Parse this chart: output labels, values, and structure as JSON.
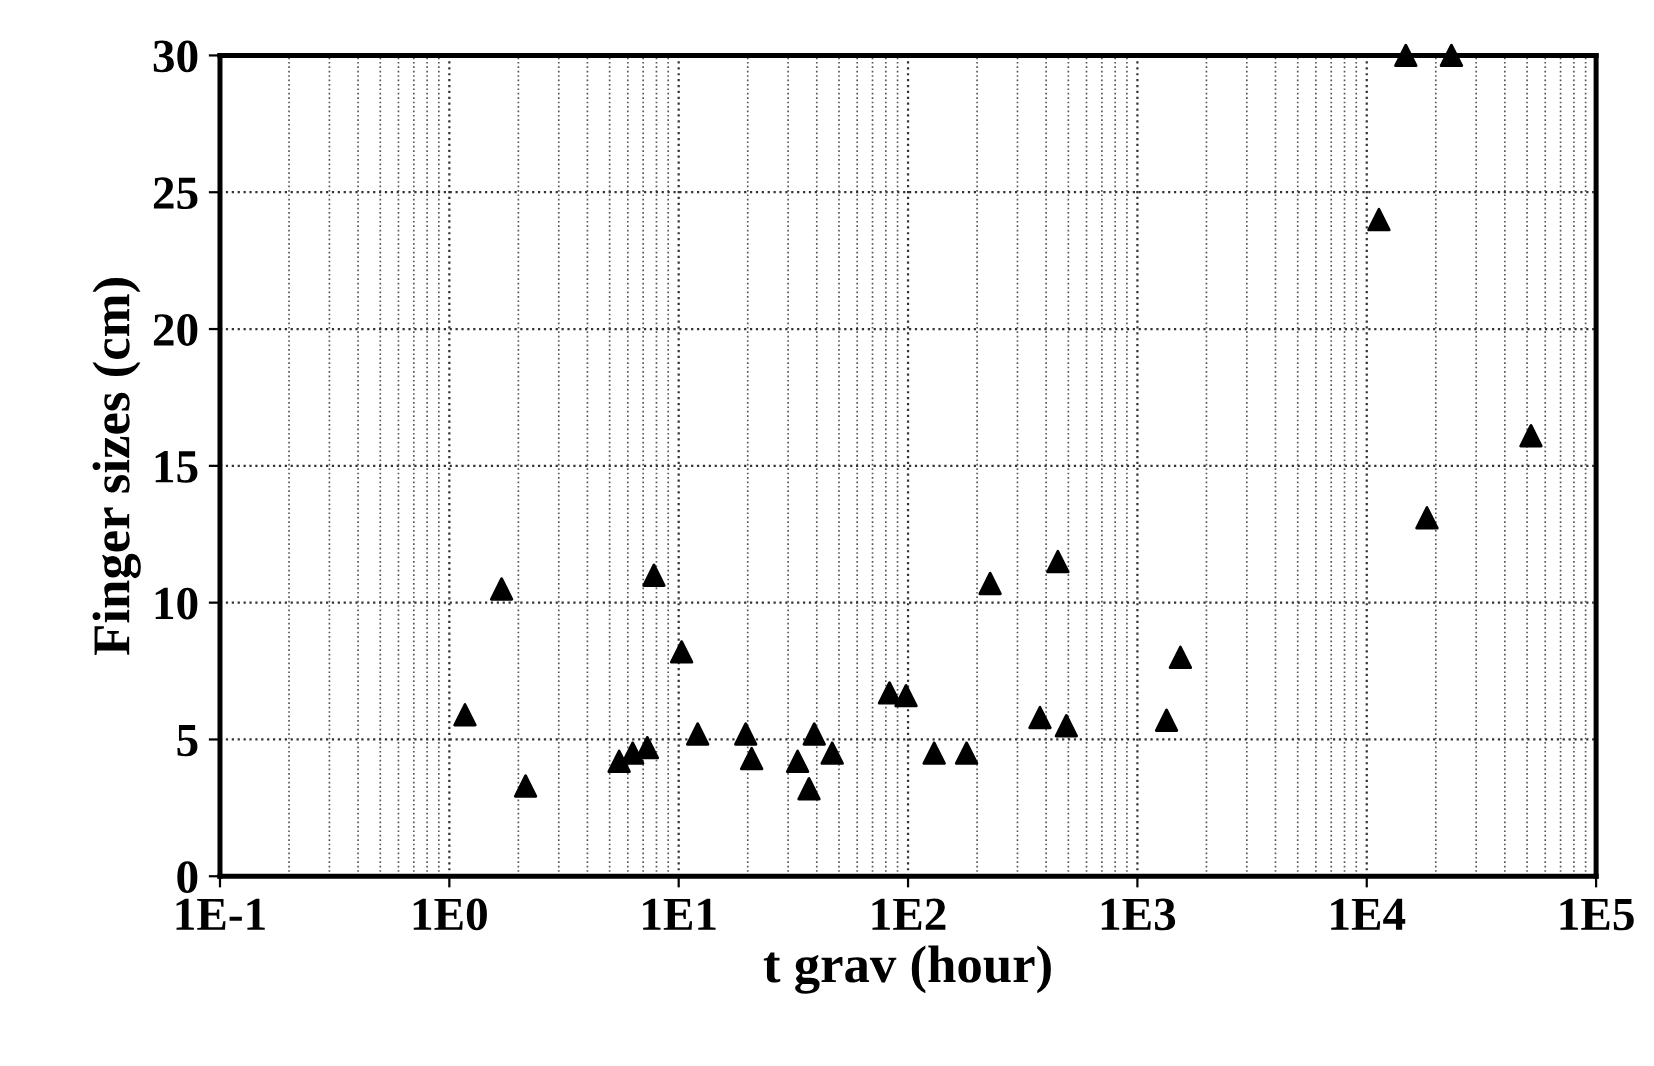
{
  "chart_data": {
    "type": "scatter",
    "xlabel": "t grav (hour)",
    "ylabel": "Finger sizes (cm)",
    "log": "x",
    "marker": "triangle",
    "grid": true,
    "xlim": [
      0.1,
      100000
    ],
    "xticks": [
      {
        "value": 0.1,
        "label": "1E-1"
      },
      {
        "value": 1,
        "label": "1E0"
      },
      {
        "value": 10,
        "label": "1E1"
      },
      {
        "value": 100,
        "label": "1E2"
      },
      {
        "value": 1000,
        "label": "1E3"
      },
      {
        "value": 10000,
        "label": "1E4"
      },
      {
        "value": 100000,
        "label": "1E5"
      }
    ],
    "ylim": [
      0,
      30
    ],
    "yticks": [
      0,
      5,
      10,
      15,
      20,
      25,
      30
    ],
    "series": [
      {
        "color": "#000000",
        "x": [
          1.17,
          1.69,
          2.15,
          5.5,
          6.3,
          7.3,
          7.8,
          10.3,
          12.1,
          19.6,
          20.8,
          33,
          39,
          37,
          46.7,
          83,
          98,
          130,
          228,
          180,
          376,
          450,
          490,
          1340,
          1540,
          11300,
          14800,
          18300,
          23400,
          52000
        ],
        "values": [
          5.9,
          10.5,
          3.3,
          4.2,
          4.5,
          4.7,
          11.0,
          8.2,
          5.2,
          5.2,
          4.3,
          4.2,
          5.2,
          3.2,
          4.5,
          6.7,
          6.6,
          4.5,
          10.7,
          4.5,
          5.8,
          11.5,
          5.5,
          5.7,
          8.0,
          24.0,
          30,
          13.1,
          30,
          16.1
        ]
      }
    ]
  }
}
